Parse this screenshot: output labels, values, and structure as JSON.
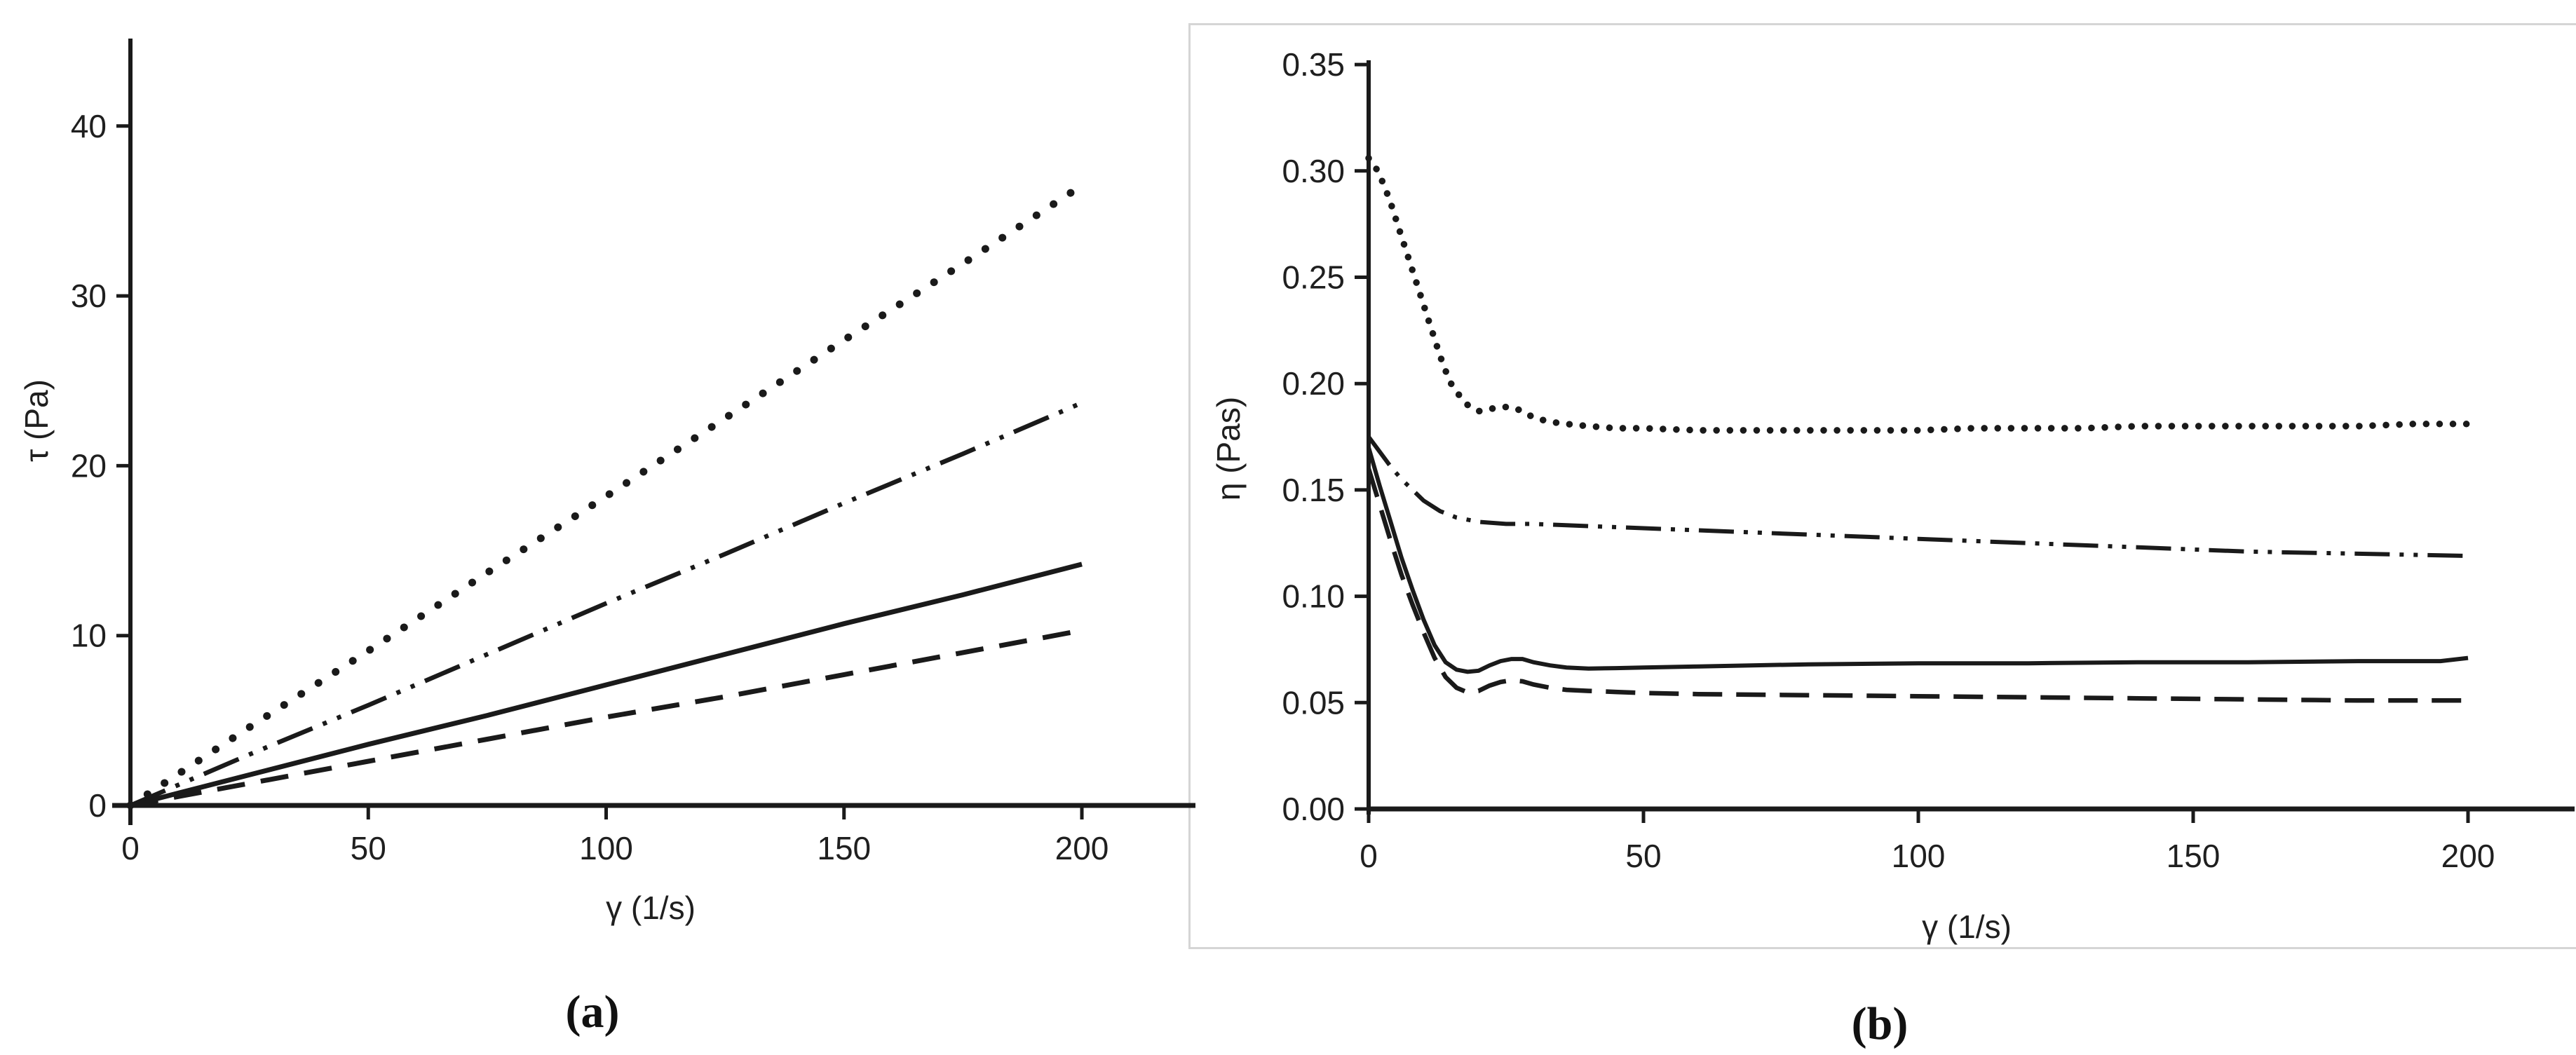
{
  "figure": {
    "background": "#ffffff",
    "ink_color": "#1a1a1a",
    "tick_label_color": "#1f1f1f",
    "panel_border_color": "#d5d5d5",
    "captions": {
      "a": "(a)",
      "b": "(b)"
    }
  },
  "chart_data": [
    {
      "id": "a",
      "type": "line",
      "title": "",
      "xlabel": "γ (1/s)",
      "ylabel": "τ (Pa)",
      "xlim": [
        0,
        224
      ],
      "ylim": [
        0,
        45
      ],
      "grid": false,
      "legend": null,
      "xticks": [
        0,
        50,
        100,
        150,
        200
      ],
      "xtick_labels": [
        "0",
        "50",
        "100",
        "150",
        "200"
      ],
      "yticks": [
        0,
        10,
        20,
        30,
        40
      ],
      "ytick_labels": [
        "0",
        "10",
        "20",
        "30",
        "40"
      ],
      "series": [
        {
          "name": "dotted",
          "line_style": "dotted",
          "x": [
            0,
            25,
            50,
            75,
            100,
            125,
            150,
            175,
            200
          ],
          "y": [
            0,
            4.6,
            9.1,
            13.7,
            18.2,
            22.8,
            27.4,
            31.9,
            36.5
          ]
        },
        {
          "name": "dash-dot-dot",
          "line_style": "dash-dot-dot",
          "x": [
            0,
            25,
            50,
            75,
            100,
            125,
            150,
            175,
            200
          ],
          "y": [
            0,
            3.0,
            5.9,
            8.9,
            11.9,
            14.8,
            17.8,
            20.7,
            23.7
          ]
        },
        {
          "name": "solid",
          "line_style": "solid",
          "x": [
            0,
            25,
            50,
            75,
            100,
            125,
            150,
            175,
            200
          ],
          "y": [
            0,
            1.8,
            3.6,
            5.3,
            7.1,
            8.9,
            10.7,
            12.4,
            14.2
          ]
        },
        {
          "name": "dashed",
          "line_style": "dashed",
          "x": [
            0,
            25,
            50,
            75,
            100,
            125,
            150,
            175,
            200
          ],
          "y": [
            0,
            1.3,
            2.6,
            3.9,
            5.2,
            6.4,
            7.7,
            9.0,
            10.3
          ]
        }
      ]
    },
    {
      "id": "b",
      "type": "line",
      "title": "",
      "xlabel": "γ (1/s)",
      "ylabel": "η (Pas)",
      "xlim": [
        0,
        219
      ],
      "ylim": [
        0,
        0.3625
      ],
      "grid": false,
      "legend": null,
      "xticks": [
        0,
        50,
        100,
        150,
        200
      ],
      "xtick_labels": [
        "0",
        "50",
        "100",
        "150",
        "200"
      ],
      "yticks": [
        0.0,
        0.05,
        0.1,
        0.15,
        0.2,
        0.25,
        0.3,
        0.35
      ],
      "ytick_labels": [
        "0.00",
        "0.05",
        "0.10",
        "0.15",
        "0.20",
        "0.25",
        "0.30",
        "0.35"
      ],
      "series": [
        {
          "name": "dotted",
          "line_style": "dotted",
          "x": [
            0,
            1,
            2,
            3,
            4,
            5,
            6,
            7,
            8,
            9,
            10,
            11,
            12,
            13,
            14,
            15,
            16,
            17,
            18,
            20,
            22,
            24,
            26,
            28,
            30,
            33,
            36,
            40,
            45,
            50,
            60,
            70,
            80,
            90,
            100,
            110,
            120,
            130,
            140,
            150,
            160,
            170,
            180,
            190,
            200
          ],
          "y": [
            0.306,
            0.303,
            0.298,
            0.292,
            0.285,
            0.277,
            0.269,
            0.261,
            0.253,
            0.245,
            0.237,
            0.229,
            0.221,
            0.213,
            0.206,
            0.2,
            0.196,
            0.193,
            0.19,
            0.187,
            0.188,
            0.189,
            0.189,
            0.187,
            0.184,
            0.182,
            0.181,
            0.18,
            0.179,
            0.179,
            0.178,
            0.178,
            0.178,
            0.178,
            0.178,
            0.179,
            0.179,
            0.179,
            0.18,
            0.18,
            0.18,
            0.18,
            0.18,
            0.181,
            0.181
          ]
        },
        {
          "name": "dash-dot-dot",
          "line_style": "dash-dot-dot",
          "x": [
            0,
            2,
            4,
            6,
            8,
            10,
            13,
            16,
            20,
            25,
            30,
            40,
            50,
            60,
            80,
            100,
            120,
            140,
            160,
            180,
            200
          ],
          "y": [
            0.175,
            0.168,
            0.161,
            0.155,
            0.15,
            0.145,
            0.14,
            0.137,
            0.135,
            0.134,
            0.134,
            0.133,
            0.132,
            0.131,
            0.129,
            0.127,
            0.125,
            0.123,
            0.121,
            0.12,
            0.119
          ]
        },
        {
          "name": "solid",
          "line_style": "solid",
          "x": [
            0,
            2,
            4,
            6,
            8,
            10,
            12,
            14,
            16,
            18,
            20,
            22,
            24,
            26,
            28,
            30,
            33,
            36,
            40,
            45,
            50,
            60,
            80,
            100,
            120,
            140,
            160,
            180,
            195,
            200
          ],
          "y": [
            0.17,
            0.152,
            0.135,
            0.118,
            0.103,
            0.089,
            0.077,
            0.069,
            0.0655,
            0.0645,
            0.065,
            0.0675,
            0.0695,
            0.0705,
            0.0705,
            0.069,
            0.0675,
            0.0665,
            0.066,
            0.0662,
            0.0665,
            0.067,
            0.068,
            0.0685,
            0.0685,
            0.069,
            0.069,
            0.0695,
            0.0695,
            0.071
          ]
        },
        {
          "name": "dashed",
          "line_style": "dashed",
          "x": [
            0,
            2,
            4,
            6,
            8,
            10,
            12,
            14,
            16,
            18,
            20,
            22,
            24,
            26,
            28,
            30,
            33,
            36,
            40,
            45,
            50,
            60,
            80,
            100,
            120,
            140,
            160,
            180,
            200
          ],
          "y": [
            0.16,
            0.143,
            0.126,
            0.11,
            0.096,
            0.083,
            0.071,
            0.062,
            0.057,
            0.0548,
            0.0555,
            0.058,
            0.0597,
            0.0605,
            0.06,
            0.0585,
            0.057,
            0.056,
            0.0555,
            0.055,
            0.0545,
            0.054,
            0.0535,
            0.053,
            0.0525,
            0.052,
            0.0515,
            0.051,
            0.051
          ]
        }
      ]
    }
  ]
}
